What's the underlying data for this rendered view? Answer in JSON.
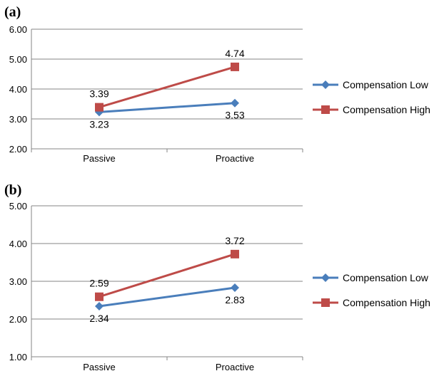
{
  "charts": [
    {
      "panel_label": "(a)",
      "chart_data": {
        "type": "line",
        "categories": [
          "Passive",
          "Proactive"
        ],
        "ylim": [
          2.0,
          6.0
        ],
        "yticks": [
          "2.00",
          "3.00",
          "4.00",
          "5.00",
          "6.00"
        ],
        "grid": true,
        "legend": "right",
        "series": [
          {
            "name": "Compensation Low",
            "values": [
              3.23,
              3.53
            ],
            "labels": [
              "3.23",
              "3.53"
            ],
            "color": "#4a7ebb",
            "marker": "diamond"
          },
          {
            "name": "Compensation High",
            "values": [
              3.39,
              4.74
            ],
            "labels": [
              "3.39",
              "4.74"
            ],
            "color": "#be4b48",
            "marker": "square"
          }
        ]
      }
    },
    {
      "panel_label": "(b)",
      "chart_data": {
        "type": "line",
        "categories": [
          "Passive",
          "Proactive"
        ],
        "ylim": [
          1.0,
          5.0
        ],
        "yticks": [
          "1.00",
          "2.00",
          "3.00",
          "4.00",
          "5.00"
        ],
        "grid": true,
        "legend": "right",
        "series": [
          {
            "name": "Compensation Low",
            "values": [
              2.34,
              2.83
            ],
            "labels": [
              "2.34",
              "2.83"
            ],
            "color": "#4a7ebb",
            "marker": "diamond"
          },
          {
            "name": "Compensation High",
            "values": [
              2.59,
              3.72
            ],
            "labels": [
              "2.59",
              "3.72"
            ],
            "color": "#be4b48",
            "marker": "square"
          }
        ]
      }
    }
  ]
}
